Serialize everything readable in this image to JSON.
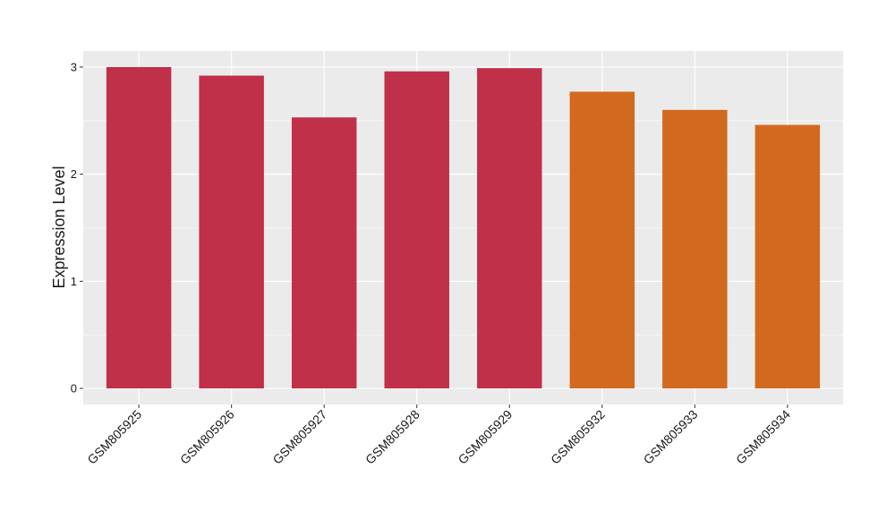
{
  "chart_data": {
    "type": "bar",
    "y_label": "Expression Level",
    "categories": [
      "GSM805925",
      "GSM805926",
      "GSM805927",
      "GSM805928",
      "GSM805929",
      "GSM805932",
      "GSM805933",
      "GSM805934"
    ],
    "values": [
      3.0,
      2.92,
      2.53,
      2.96,
      2.99,
      2.77,
      2.6,
      2.46
    ],
    "colors": [
      "#c03049",
      "#c03049",
      "#c03049",
      "#c03049",
      "#c03049",
      "#d2691f",
      "#d2691f",
      "#d2691f"
    ],
    "ylim": [
      -0.15,
      3.15
    ],
    "yticks": [
      0,
      1,
      2,
      3
    ],
    "grid": true
  }
}
